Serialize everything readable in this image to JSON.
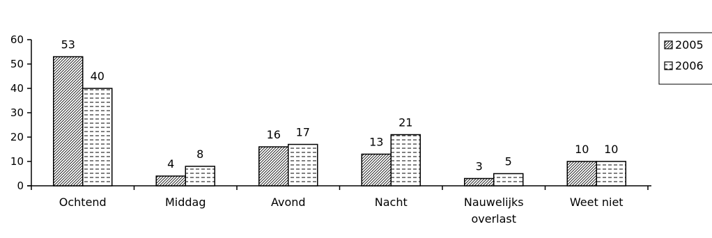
{
  "chart_data": {
    "type": "bar",
    "categories": [
      "Ochtend",
      "Middag",
      "Avond",
      "Nacht",
      "Nauwelijks overlast",
      "Weet niet"
    ],
    "category_lines": [
      [
        "Ochtend"
      ],
      [
        "Middag"
      ],
      [
        "Avond"
      ],
      [
        "Nacht"
      ],
      [
        "Nauwelijks",
        "overlast"
      ],
      [
        "Weet niet"
      ]
    ],
    "series": [
      {
        "name": "2005",
        "values": [
          53,
          4,
          16,
          13,
          3,
          10
        ],
        "pattern": "diagonal-hatch"
      },
      {
        "name": "2006",
        "values": [
          40,
          8,
          17,
          21,
          5,
          10
        ],
        "pattern": "dashed-lines"
      }
    ],
    "ylim": [
      0,
      60
    ],
    "yticks": [
      0,
      10,
      20,
      30,
      40,
      50,
      60
    ],
    "grid": false,
    "legend_position": "right",
    "data_labels": true,
    "colors": {
      "bar_stroke": "#000000",
      "pattern": "#000000",
      "background": "#ffffff"
    }
  }
}
